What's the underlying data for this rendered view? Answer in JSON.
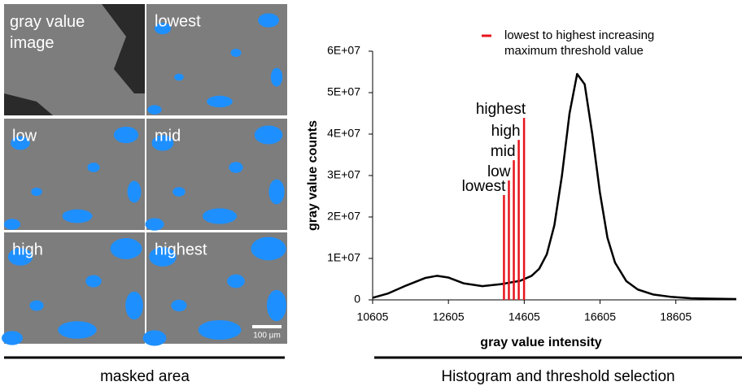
{
  "panels": {
    "labels": [
      "gray value image",
      "lowest",
      "low",
      "mid",
      "high",
      "highest"
    ],
    "scale_bar": "100 µm",
    "caption": "masked area"
  },
  "chart_data": {
    "type": "line",
    "caption": "Histogram and threshold selection",
    "x_label": "gray value intensity",
    "y_label": "gray value counts",
    "legend": "lowest to highest increasing maximum threshold value",
    "legend_color": "#e8141c",
    "xlim": [
      10605,
      20200
    ],
    "xticks": [
      10605,
      12605,
      14605,
      16605,
      18605
    ],
    "ylim": [
      0,
      60000000
    ],
    "yticks": [
      0,
      {
        "value": 10000000,
        "label": "1E+07"
      },
      {
        "value": 20000000,
        "label": "2E+07"
      },
      {
        "value": 30000000,
        "label": "3E+07"
      },
      {
        "value": 40000000,
        "label": "4E+07"
      },
      {
        "value": 50000000,
        "label": "5E+07"
      },
      {
        "value": 60000000,
        "label": "6E+07"
      }
    ],
    "series": [
      {
        "color": "#000000",
        "x": [
          10605,
          11000,
          11500,
          12000,
          12300,
          12600,
          13000,
          13500,
          14000,
          14500,
          14800,
          15000,
          15200,
          15400,
          15600,
          15800,
          16000,
          16200,
          16400,
          16600,
          16800,
          17000,
          17300,
          17600,
          18000,
          18500,
          19000,
          19500,
          20200
        ],
        "values": [
          500000,
          1500000,
          3500000,
          5300000,
          5800000,
          5400000,
          4000000,
          3300000,
          3800000,
          4600000,
          5800000,
          7500000,
          11000000,
          18000000,
          30000000,
          45000000,
          54500000,
          52000000,
          40000000,
          26000000,
          15000000,
          9000000,
          4500000,
          2500000,
          1300000,
          700000,
          400000,
          300000,
          200000
        ]
      }
    ],
    "thresholds": [
      {
        "label": "lowest",
        "x": 14070,
        "top": 25300000
      },
      {
        "label": "low",
        "x": 14200,
        "top": 28800000
      },
      {
        "label": "mid",
        "x": 14330,
        "top": 33700000
      },
      {
        "label": "high",
        "x": 14460,
        "top": 38600000
      },
      {
        "label": "highest",
        "x": 14600,
        "top": 43900000
      }
    ]
  }
}
